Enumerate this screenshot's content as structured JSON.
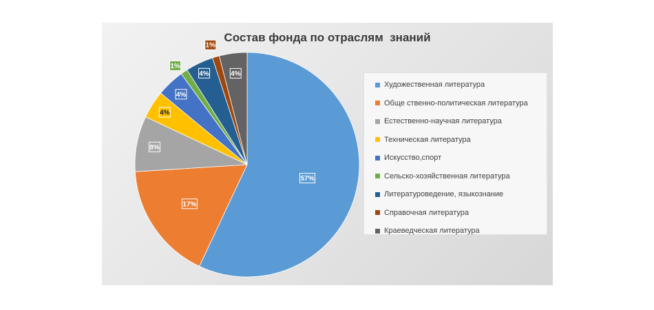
{
  "chart_data": {
    "type": "pie",
    "title": "Состав фонда по отраслям  знаний",
    "legend": "right",
    "slices": [
      {
        "name": "Художественная литература",
        "value": 57,
        "label": "57%",
        "color": "#5b9bd5"
      },
      {
        "name": "Обще ственно-политическая литература",
        "value": 17,
        "label": "17%",
        "color": "#ed7d31"
      },
      {
        "name": "Естественно-научная литература",
        "value": 8,
        "label": "8%",
        "color": "#a5a5a5"
      },
      {
        "name": "Техническая литература",
        "value": 4,
        "label": "4%",
        "color": "#ffc000"
      },
      {
        "name": "Искусство,спорт",
        "value": 4,
        "label": "4%",
        "color": "#4472c4"
      },
      {
        "name": "Сельско-хозяйственная литература",
        "value": 1,
        "label": "1%",
        "color": "#70ad47"
      },
      {
        "name": "Литературоведение, языкознание",
        "value": 4,
        "label": "4%",
        "color": "#255e91"
      },
      {
        "name": "Справочная литература",
        "value": 1,
        "label": "1%",
        "color": "#9e480e"
      },
      {
        "name": "Краеведческая литература",
        "value": 4,
        "label": "4%",
        "color": "#636363"
      }
    ]
  }
}
